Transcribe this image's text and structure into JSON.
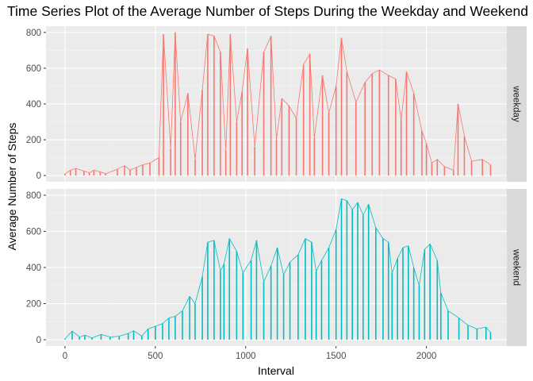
{
  "chart_data": {
    "type": "line",
    "title": "Time Series Plot of the Average Number of Steps During the Weekday and Weekend",
    "xlabel": "Interval",
    "ylabel": "Average Number of Steps",
    "xlim": [
      -105,
      2445
    ],
    "ylim": [
      -35,
      835
    ],
    "x_ticks": [
      0,
      500,
      1000,
      1500,
      2000
    ],
    "y_ticks": [
      0,
      200,
      400,
      600,
      800
    ],
    "grid": true,
    "facets": [
      {
        "label": "weekday",
        "color": "#F8766D",
        "x": [
          0,
          30,
          60,
          105,
          135,
          160,
          195,
          225,
          290,
          330,
          360,
          395,
          430,
          470,
          520,
          545,
          585,
          610,
          640,
          680,
          720,
          760,
          790,
          825,
          860,
          890,
          915,
          950,
          980,
          1010,
          1050,
          1100,
          1140,
          1170,
          1200,
          1240,
          1280,
          1320,
          1355,
          1380,
          1425,
          1460,
          1500,
          1530,
          1560,
          1610,
          1660,
          1700,
          1740,
          1790,
          1830,
          1860,
          1890,
          1930,
          1975,
          2000,
          2030,
          2060,
          2100,
          2150,
          2175,
          2210,
          2250,
          2310,
          2355
        ],
        "values": [
          10,
          30,
          40,
          25,
          15,
          30,
          20,
          10,
          35,
          55,
          30,
          45,
          60,
          70,
          100,
          790,
          150,
          800,
          300,
          460,
          90,
          480,
          790,
          780,
          690,
          140,
          790,
          300,
          470,
          710,
          160,
          690,
          780,
          200,
          430,
          390,
          320,
          620,
          680,
          210,
          560,
          350,
          500,
          770,
          580,
          410,
          520,
          570,
          590,
          560,
          540,
          310,
          580,
          460,
          250,
          180,
          70,
          90,
          50,
          30,
          400,
          220,
          80,
          90,
          60
        ]
      },
      {
        "label": "weekend",
        "color": "#00BFC4",
        "x": [
          0,
          40,
          80,
          110,
          150,
          200,
          250,
          300,
          350,
          380,
          425,
          460,
          500,
          540,
          575,
          610,
          650,
          690,
          720,
          760,
          790,
          825,
          860,
          880,
          910,
          950,
          985,
          1030,
          1060,
          1100,
          1140,
          1175,
          1210,
          1245,
          1290,
          1330,
          1365,
          1390,
          1420,
          1460,
          1500,
          1530,
          1560,
          1590,
          1620,
          1650,
          1680,
          1720,
          1760,
          1790,
          1810,
          1840,
          1870,
          1900,
          1930,
          1960,
          1990,
          2020,
          2060,
          2080,
          2120,
          2180,
          2230,
          2280,
          2330,
          2355
        ],
        "values": [
          5,
          48,
          15,
          25,
          10,
          30,
          15,
          20,
          35,
          50,
          20,
          60,
          75,
          90,
          120,
          130,
          160,
          240,
          200,
          350,
          540,
          550,
          380,
          420,
          560,
          490,
          370,
          440,
          550,
          320,
          410,
          510,
          360,
          430,
          470,
          560,
          540,
          380,
          440,
          510,
          610,
          780,
          770,
          720,
          760,
          690,
          750,
          620,
          560,
          540,
          370,
          450,
          510,
          520,
          400,
          300,
          500,
          530,
          440,
          260,
          160,
          120,
          80,
          60,
          70,
          40
        ]
      }
    ]
  }
}
